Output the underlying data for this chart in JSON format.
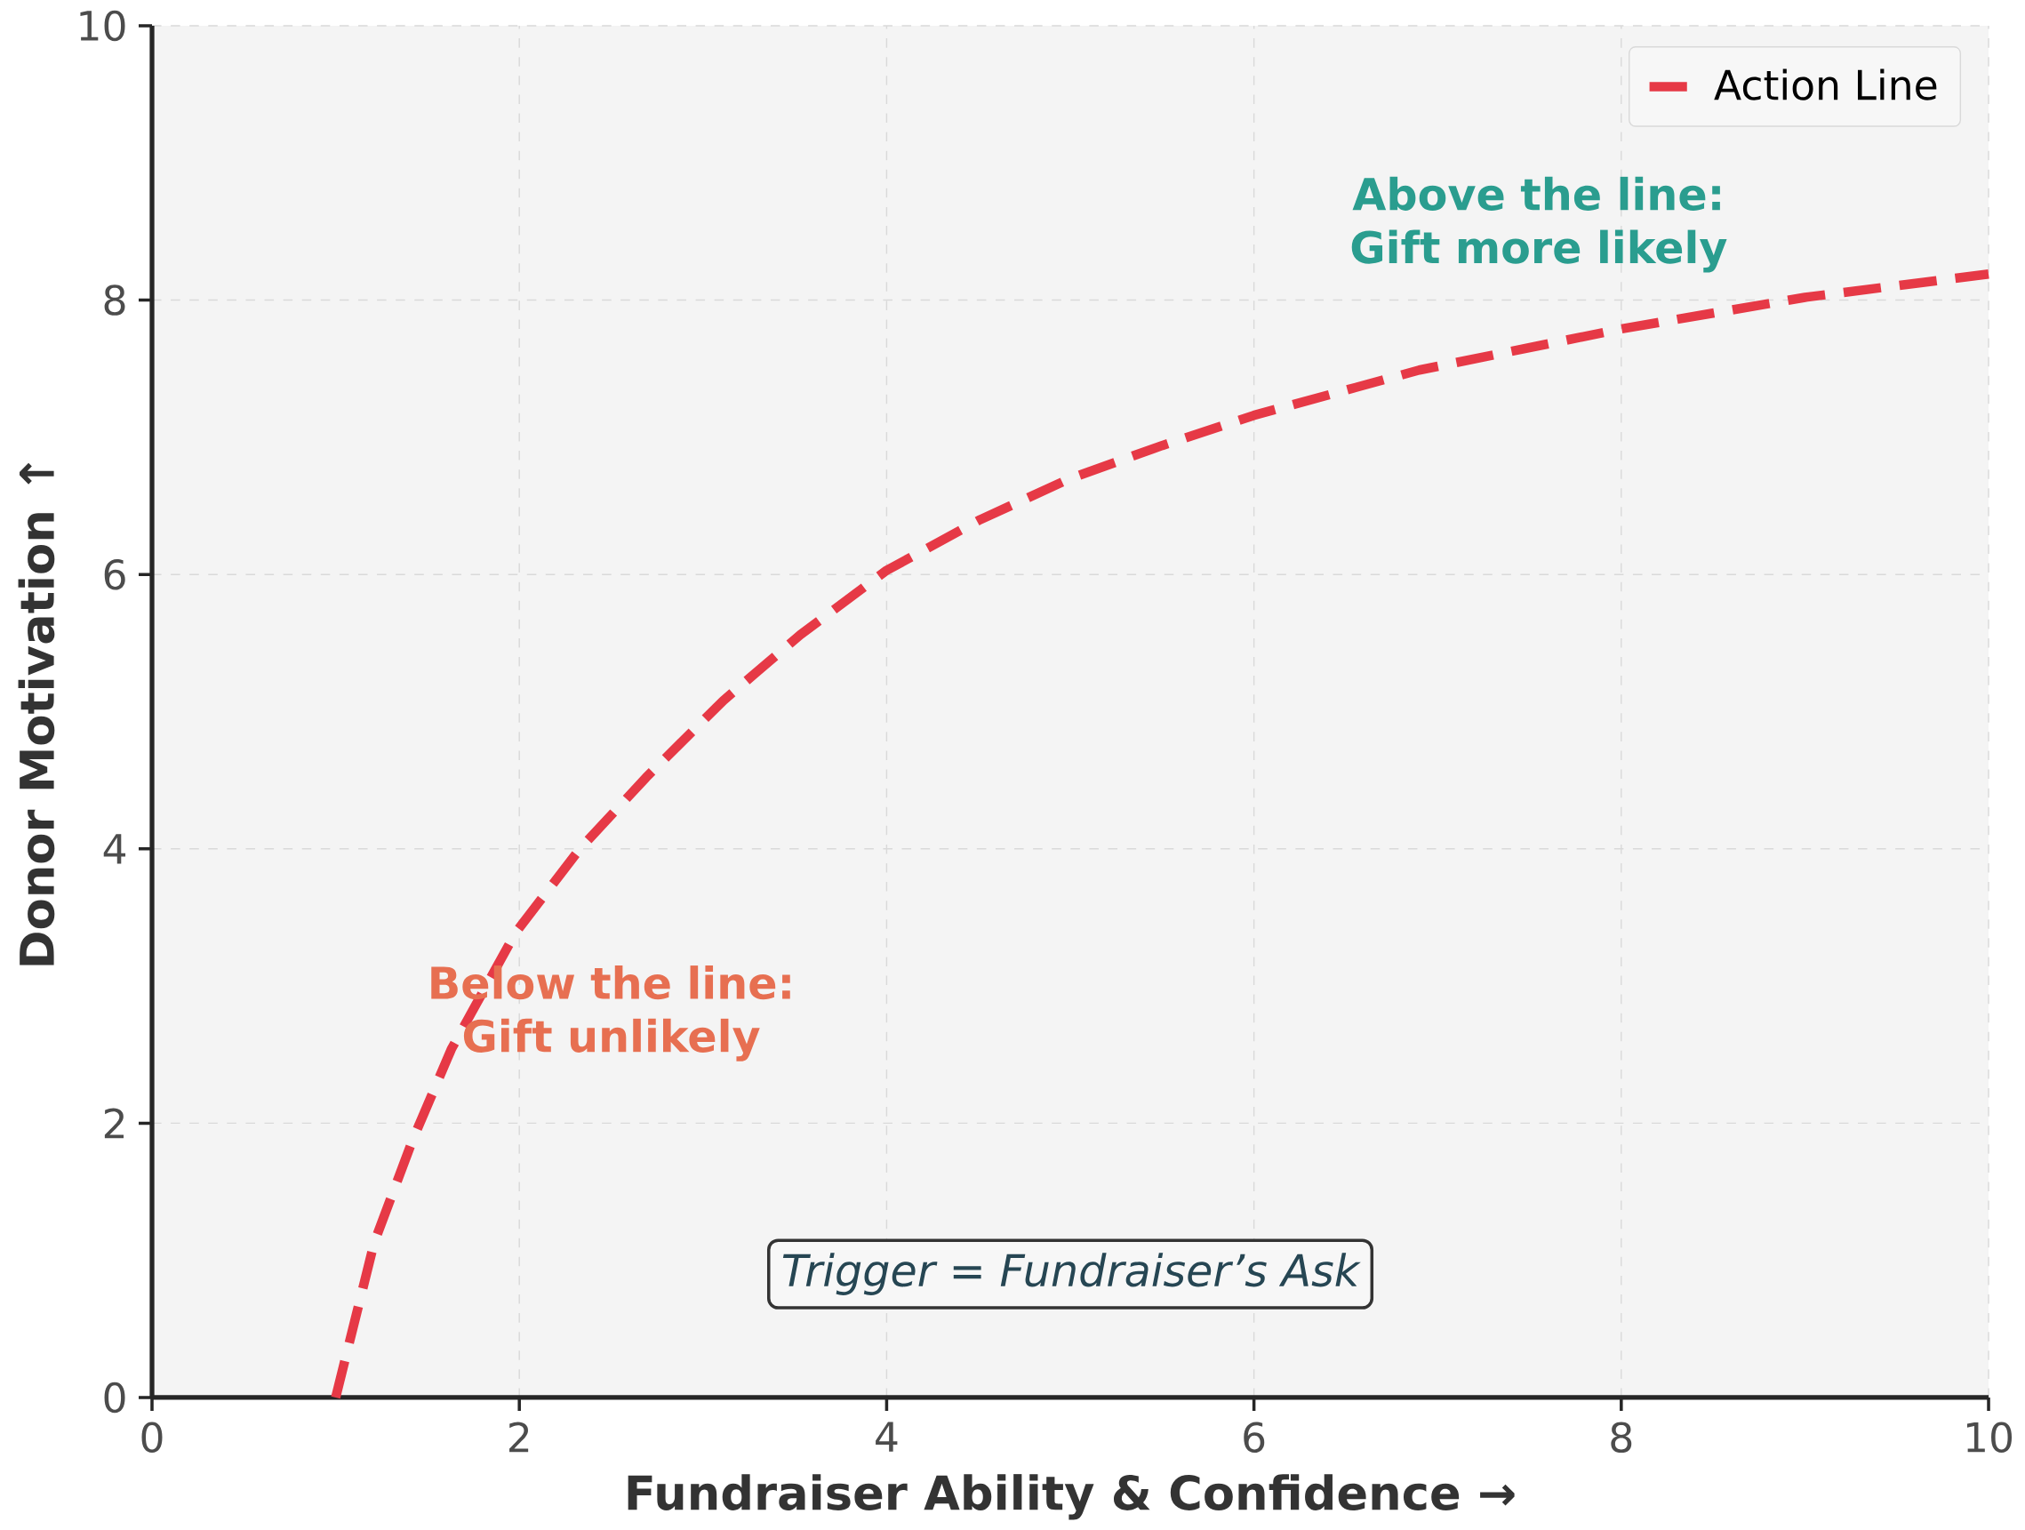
{
  "chart_data": {
    "type": "line",
    "xlabel": "Fundraiser Ability & Confidence →",
    "ylabel": "Donor Motivation ↑",
    "series": [
      {
        "name": "Action Line",
        "color": "#e63946",
        "line_style": "dashed",
        "x": [
          1,
          1.21,
          1.42,
          1.63,
          1.98,
          2.33,
          2.69,
          3.11,
          3.53,
          4.0,
          4.51,
          5.0,
          5.5,
          6.0,
          6.9,
          8.0,
          9.0,
          10
        ],
        "values": [
          0,
          1.13,
          1.88,
          2.54,
          3.39,
          4.0,
          4.52,
          5.08,
          5.56,
          6.03,
          6.4,
          6.7,
          6.94,
          7.16,
          7.49,
          7.79,
          8.02,
          8.19
        ]
      }
    ],
    "xlim": [
      0,
      10
    ],
    "ylim": [
      0,
      10
    ],
    "xticks": [
      0,
      2,
      4,
      6,
      8,
      10
    ],
    "yticks": [
      0,
      2,
      4,
      6,
      8,
      10
    ],
    "grid": true,
    "legend": "top right",
    "marker": "none",
    "annotations": [
      "Above the line: Gift more likely",
      "Below the line: Gift unlikely",
      "Trigger = Fundraiser’s Ask"
    ]
  }
}
